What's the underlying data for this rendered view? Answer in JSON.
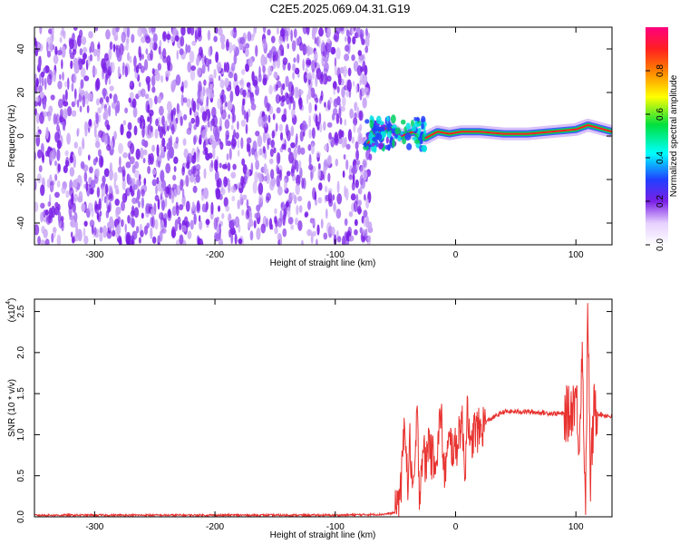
{
  "title": "C2E5.2025.069.04.31.G19",
  "colors": {
    "snr_line": "#e8322f",
    "spectrum_main": "#7a1fe6",
    "spectrum_light": "#c9a6f5",
    "ridge": "#ff2020"
  },
  "chart_data": [
    {
      "type": "heatmap",
      "xlabel": "Height of straight line (km)",
      "ylabel": "Frequency (Hz)",
      "xlim": [
        -350,
        130
      ],
      "ylim": [
        -50,
        50
      ],
      "x_ticks": [
        -300,
        -200,
        -100,
        0,
        100
      ],
      "x_tick_labels": [
        "-300",
        "-200",
        "-100",
        "0",
        "100"
      ],
      "y_ticks": [
        -40,
        -20,
        0,
        20,
        40
      ],
      "y_tick_labels": [
        "-40",
        "-20",
        "0",
        "20",
        "40"
      ],
      "noise_region_x": [
        -350,
        -75
      ],
      "signal_ridge": {
        "x": [
          -75,
          -65,
          -55,
          -45,
          -35,
          -25,
          -15,
          -5,
          5,
          20,
          40,
          60,
          80,
          100,
          110,
          130
        ],
        "freq": [
          -5,
          2,
          4,
          0,
          2,
          -1,
          2,
          1,
          2,
          2,
          1,
          1,
          2,
          3,
          5,
          2
        ]
      },
      "colorbar": {
        "label": "Normalized spectral amplitude",
        "range": [
          0,
          1
        ],
        "ticks": [
          0.0,
          0.2,
          0.4,
          0.6,
          0.8
        ],
        "tick_labels": [
          "0.0",
          "0.2",
          "0.4",
          "0.6",
          "0.8"
        ]
      }
    },
    {
      "type": "line",
      "xlabel": "Height of straight line (km)",
      "ylabel": "SNR (10 * v/v)",
      "y_scale_label": "(x10",
      "y_scale_exp": "4",
      "xlim": [
        -350,
        130
      ],
      "ylim": [
        0,
        2.65
      ],
      "x_ticks": [
        -300,
        -200,
        -100,
        0,
        100
      ],
      "x_tick_labels": [
        "-300",
        "-200",
        "-100",
        "0",
        "100"
      ],
      "y_ticks": [
        0.0,
        0.5,
        1.0,
        1.5,
        2.0,
        2.5
      ],
      "y_tick_labels": [
        "0.0",
        "0.5",
        "1.0",
        "1.5",
        "2.0",
        "2.5"
      ],
      "series": [
        {
          "x": [
            -350,
            -300,
            -250,
            -200,
            -150,
            -100,
            -60,
            -50,
            -45,
            -42,
            -40,
            -38,
            -35,
            -32,
            -30,
            -27,
            -25,
            -22,
            -20,
            -15,
            -12,
            -10,
            -5,
            0,
            5,
            8,
            10,
            12,
            15,
            20,
            25,
            30,
            40,
            60,
            80,
            95,
            100,
            103,
            105,
            108,
            110,
            112,
            115,
            120,
            130
          ],
          "y": [
            0.02,
            0.02,
            0.02,
            0.02,
            0.02,
            0.02,
            0.03,
            0.05,
            0.4,
            1.3,
            0.3,
            0.9,
            0.2,
            1.25,
            0.3,
            0.9,
            0.6,
            1.0,
            0.7,
            0.8,
            1.35,
            0.5,
            0.9,
            0.8,
            1.2,
            0.55,
            1.5,
            0.7,
            1.05,
            1.05,
            1.15,
            1.2,
            1.28,
            1.28,
            1.26,
            1.25,
            1.5,
            0.9,
            2.1,
            0.15,
            2.6,
            0.4,
            1.3,
            1.25,
            1.22
          ]
        }
      ]
    }
  ]
}
